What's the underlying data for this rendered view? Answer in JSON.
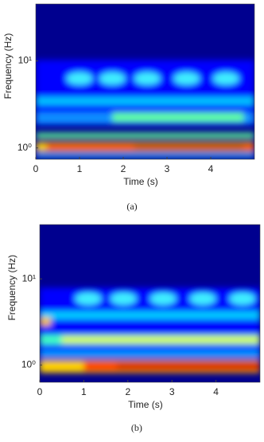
{
  "chart_data": [
    {
      "type": "spectrogram",
      "caption": "(a)",
      "x_label": "Time (s)",
      "y_label": "Frequency (Hz)",
      "xlim": [
        0,
        5
      ],
      "xticks": [
        0,
        1,
        2,
        3,
        4
      ],
      "ylim": [
        0.74,
        45
      ],
      "y_log": true,
      "yticks": [
        {
          "value": 1,
          "label": "10⁰"
        },
        {
          "value": 10,
          "label": "10¹"
        }
      ]
    },
    {
      "type": "spectrogram",
      "caption": "(b)",
      "x_label": "Time (s)",
      "y_label": "Frequency (Hz)",
      "xlim": [
        0,
        5
      ],
      "xticks": [
        0,
        1,
        2,
        3,
        4
      ],
      "ylim": [
        0.63,
        42.7
      ],
      "y_log": true,
      "yticks": [
        {
          "value": 1,
          "label": "10⁰"
        },
        {
          "value": 10,
          "label": "10¹"
        }
      ]
    }
  ]
}
